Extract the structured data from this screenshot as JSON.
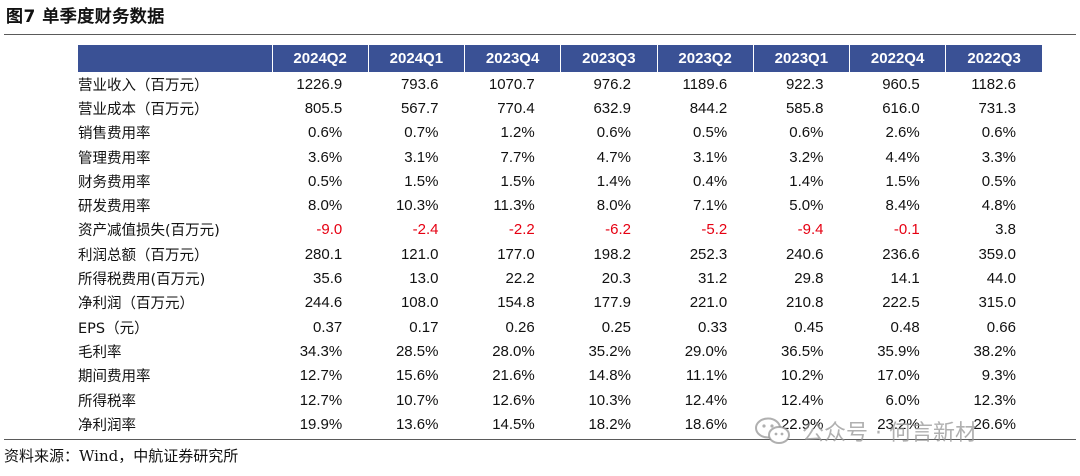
{
  "figure": {
    "title": "图7  单季度财务数据",
    "source": "资料来源：Wind，中航证券研究所"
  },
  "watermark": {
    "text": "公众号 · 何言新材",
    "icon": "wechat-icon"
  },
  "colors": {
    "header_bg": "#3a5195",
    "header_text": "#ffffff",
    "negative": "#e60012"
  },
  "table": {
    "columns": [
      "2024Q2",
      "2024Q1",
      "2023Q4",
      "2023Q3",
      "2023Q2",
      "2023Q1",
      "2022Q4",
      "2022Q3"
    ],
    "rows": [
      {
        "label": "营业收入（百万元）",
        "values": [
          "1226.9",
          "793.6",
          "1070.7",
          "976.2",
          "1189.6",
          "922.3",
          "960.5",
          "1182.6"
        ]
      },
      {
        "label": "营业成本（百万元）",
        "values": [
          "805.5",
          "567.7",
          "770.4",
          "632.9",
          "844.2",
          "585.8",
          "616.0",
          "731.3"
        ]
      },
      {
        "label": "销售费用率",
        "values": [
          "0.6%",
          "0.7%",
          "1.2%",
          "0.6%",
          "0.5%",
          "0.6%",
          "2.6%",
          "0.6%"
        ]
      },
      {
        "label": "管理费用率",
        "values": [
          "3.6%",
          "3.1%",
          "7.7%",
          "4.7%",
          "3.1%",
          "3.2%",
          "4.4%",
          "3.3%"
        ]
      },
      {
        "label": "财务费用率",
        "values": [
          "0.5%",
          "1.5%",
          "1.5%",
          "1.4%",
          "0.4%",
          "1.4%",
          "1.5%",
          "0.5%"
        ]
      },
      {
        "label": "研发费用率",
        "values": [
          "8.0%",
          "10.3%",
          "11.3%",
          "8.0%",
          "7.1%",
          "5.0%",
          "8.4%",
          "4.8%"
        ]
      },
      {
        "label": "资产减值损失(百万元)",
        "values": [
          "-9.0",
          "-2.4",
          "-2.2",
          "-6.2",
          "-5.2",
          "-9.4",
          "-0.1",
          "3.8"
        ]
      },
      {
        "label": "利润总额（百万元）",
        "values": [
          "280.1",
          "121.0",
          "177.0",
          "198.2",
          "252.3",
          "240.6",
          "236.6",
          "359.0"
        ]
      },
      {
        "label": "所得税费用(百万元)",
        "values": [
          "35.6",
          "13.0",
          "22.2",
          "20.3",
          "31.2",
          "29.8",
          "14.1",
          "44.0"
        ]
      },
      {
        "label": "净利润（百万元）",
        "values": [
          "244.6",
          "108.0",
          "154.8",
          "177.9",
          "221.0",
          "210.8",
          "222.5",
          "315.0"
        ]
      },
      {
        "label": "EPS（元）",
        "values": [
          "0.37",
          "0.17",
          "0.26",
          "0.25",
          "0.33",
          "0.45",
          "0.48",
          "0.66"
        ]
      },
      {
        "label": "毛利率",
        "values": [
          "34.3%",
          "28.5%",
          "28.0%",
          "35.2%",
          "29.0%",
          "36.5%",
          "35.9%",
          "38.2%"
        ]
      },
      {
        "label": "期间费用率",
        "values": [
          "12.7%",
          "15.6%",
          "21.6%",
          "14.8%",
          "11.1%",
          "10.2%",
          "17.0%",
          "9.3%"
        ]
      },
      {
        "label": "所得税率",
        "values": [
          "12.7%",
          "10.7%",
          "12.6%",
          "10.3%",
          "12.4%",
          "12.4%",
          "6.0%",
          "12.3%"
        ]
      },
      {
        "label": "净利润率",
        "values": [
          "19.9%",
          "13.6%",
          "14.5%",
          "18.2%",
          "18.6%",
          "22.9%",
          "23.2%",
          "26.6%"
        ]
      }
    ]
  }
}
